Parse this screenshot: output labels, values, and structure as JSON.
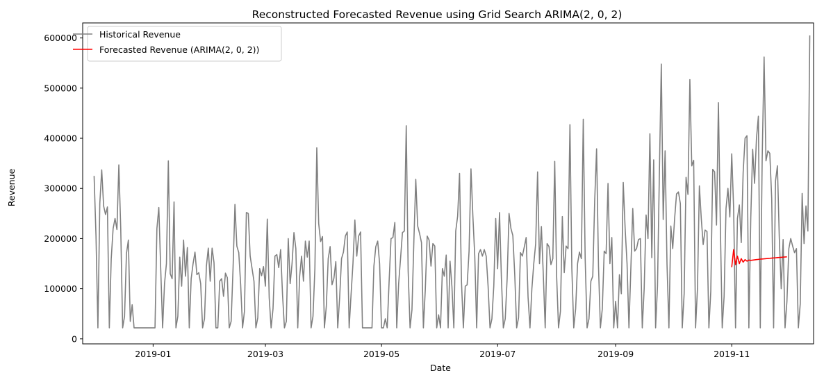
{
  "chart_data": {
    "type": "line",
    "title": "Reconstructed Forecasted Revenue using Grid Search ARIMA(2, 0, 2)",
    "xlabel": "Date",
    "ylabel": "Revenue",
    "xlim": [
      "2018-11-25",
      "2019-12-14"
    ],
    "ylim": [
      -10000,
      630000
    ],
    "x_ticks": [
      "2019-01",
      "2019-03",
      "2019-05",
      "2019-07",
      "2019-09",
      "2019-11"
    ],
    "y_ticks": [
      0,
      100000,
      200000,
      300000,
      400000,
      500000,
      600000
    ],
    "grid": false,
    "legend_position": "upper-left",
    "series": [
      {
        "name": "Historical Revenue",
        "color": "#808080",
        "start_date": "2018-12-01",
        "step_days": 1,
        "values": [
          325000,
          205000,
          22000,
          270000,
          337000,
          265000,
          248000,
          263000,
          22000,
          160000,
          220000,
          240000,
          218000,
          347000,
          220000,
          22000,
          45000,
          170000,
          197000,
          35000,
          68000,
          22000,
          22000,
          22000,
          22000,
          22000,
          22000,
          22000,
          22000,
          22000,
          22000,
          22000,
          22000,
          220000,
          262000,
          140000,
          22000,
          110000,
          150000,
          355000,
          130000,
          120000,
          273000,
          22000,
          45000,
          163000,
          105000,
          197000,
          125000,
          182000,
          22000,
          120000,
          150000,
          173000,
          128000,
          132000,
          110000,
          22000,
          40000,
          145000,
          181000,
          115000,
          181000,
          152000,
          22000,
          22000,
          115000,
          120000,
          85000,
          131000,
          122000,
          22000,
          35000,
          140000,
          268000,
          185000,
          172000,
          108000,
          22000,
          55000,
          252000,
          250000,
          165000,
          140000,
          115000,
          22000,
          42000,
          140000,
          126000,
          144000,
          105000,
          239000,
          82000,
          22000,
          60000,
          165000,
          168000,
          142000,
          178000,
          88000,
          22000,
          35000,
          200000,
          110000,
          150000,
          212000,
          180000,
          22000,
          125000,
          165000,
          115000,
          195000,
          163000,
          195000,
          22000,
          45000,
          140000,
          381000,
          230000,
          194000,
          204000,
          22000,
          65000,
          160000,
          184000,
          108000,
          121000,
          154000,
          22000,
          82000,
          160000,
          173000,
          205000,
          213000,
          22000,
          88000,
          150000,
          237000,
          165000,
          205000,
          213000,
          22000,
          22000,
          22000,
          22000,
          22000,
          22000,
          145000,
          184000,
          195000,
          150000,
          22000,
          22000,
          40000,
          22000,
          115000,
          200000,
          202000,
          232000,
          22000,
          110000,
          160000,
          212000,
          215000,
          425000,
          135000,
          22000,
          58000,
          195000,
          318000,
          225000,
          210000,
          192000,
          22000,
          98000,
          205000,
          197000,
          145000,
          190000,
          185000,
          22000,
          48000,
          22000,
          140000,
          125000,
          167000,
          22000,
          155000,
          104000,
          22000,
          215000,
          245000,
          330000,
          115000,
          22000,
          105000,
          108000,
          175000,
          339000,
          245000,
          165000,
          22000,
          170000,
          178000,
          165000,
          178000,
          165000,
          105000,
          22000,
          40000,
          106000,
          240000,
          140000,
          252000,
          120000,
          22000,
          40000,
          120000,
          250000,
          220000,
          206000,
          128000,
          22000,
          42000,
          172000,
          165000,
          183000,
          202000,
          83000,
          22000,
          100000,
          150000,
          190000,
          333000,
          150000,
          224000,
          128000,
          22000,
          190000,
          184000,
          148000,
          160000,
          354000,
          125000,
          22000,
          55000,
          244000,
          132000,
          185000,
          180000,
          427000,
          140000,
          22000,
          60000,
          150000,
          173000,
          160000,
          438000,
          160000,
          22000,
          40000,
          115000,
          125000,
          275000,
          379000,
          145000,
          22000,
          60000,
          175000,
          170000,
          310000,
          150000,
          202000,
          22000,
          75000,
          22000,
          128000,
          90000,
          312000,
          220000,
          150000,
          22000,
          140000,
          260000,
          175000,
          180000,
          198000,
          200000,
          22000,
          100000,
          247000,
          200000,
          409000,
          162000,
          357000,
          22000,
          105000,
          333000,
          548000,
          238000,
          375000,
          148000,
          22000,
          225000,
          180000,
          240000,
          289000,
          293000,
          270000,
          22000,
          90000,
          322000,
          288000,
          517000,
          345000,
          356000,
          22000,
          100000,
          305000,
          240000,
          188000,
          217000,
          214000,
          22000,
          95000,
          338000,
          333000,
          227000,
          471000,
          230000,
          22000,
          85000,
          260000,
          300000,
          243000,
          369000,
          260000,
          22000,
          240000,
          267000,
          192000,
          332000,
          400000,
          405000,
          22000,
          240000,
          378000,
          310000,
          400000,
          444000,
          22000,
          360000,
          562000,
          355000,
          375000,
          370000,
          280000,
          22000,
          315000,
          345000,
          200000,
          100000,
          198000,
          22000,
          75000,
          180000,
          200000,
          185000,
          172000,
          180000,
          22000,
          70000,
          290000,
          190000,
          265000,
          215000,
          605000
        ]
      },
      {
        "name": "Forecasted Revenue (ARIMA(2, 0, 2))",
        "color": "#ff0000",
        "start_date": "2019-11-01",
        "step_days": 1,
        "values": [
          143000,
          178000,
          148000,
          165000,
          150000,
          160000,
          153000,
          158000,
          155000,
          157000,
          156500,
          157000,
          157500,
          158000,
          158500,
          159000,
          159300,
          159600,
          160000,
          160300,
          160600,
          161000,
          161300,
          161600,
          162000,
          162300,
          162600,
          163000,
          163300,
          163600
        ]
      }
    ]
  }
}
